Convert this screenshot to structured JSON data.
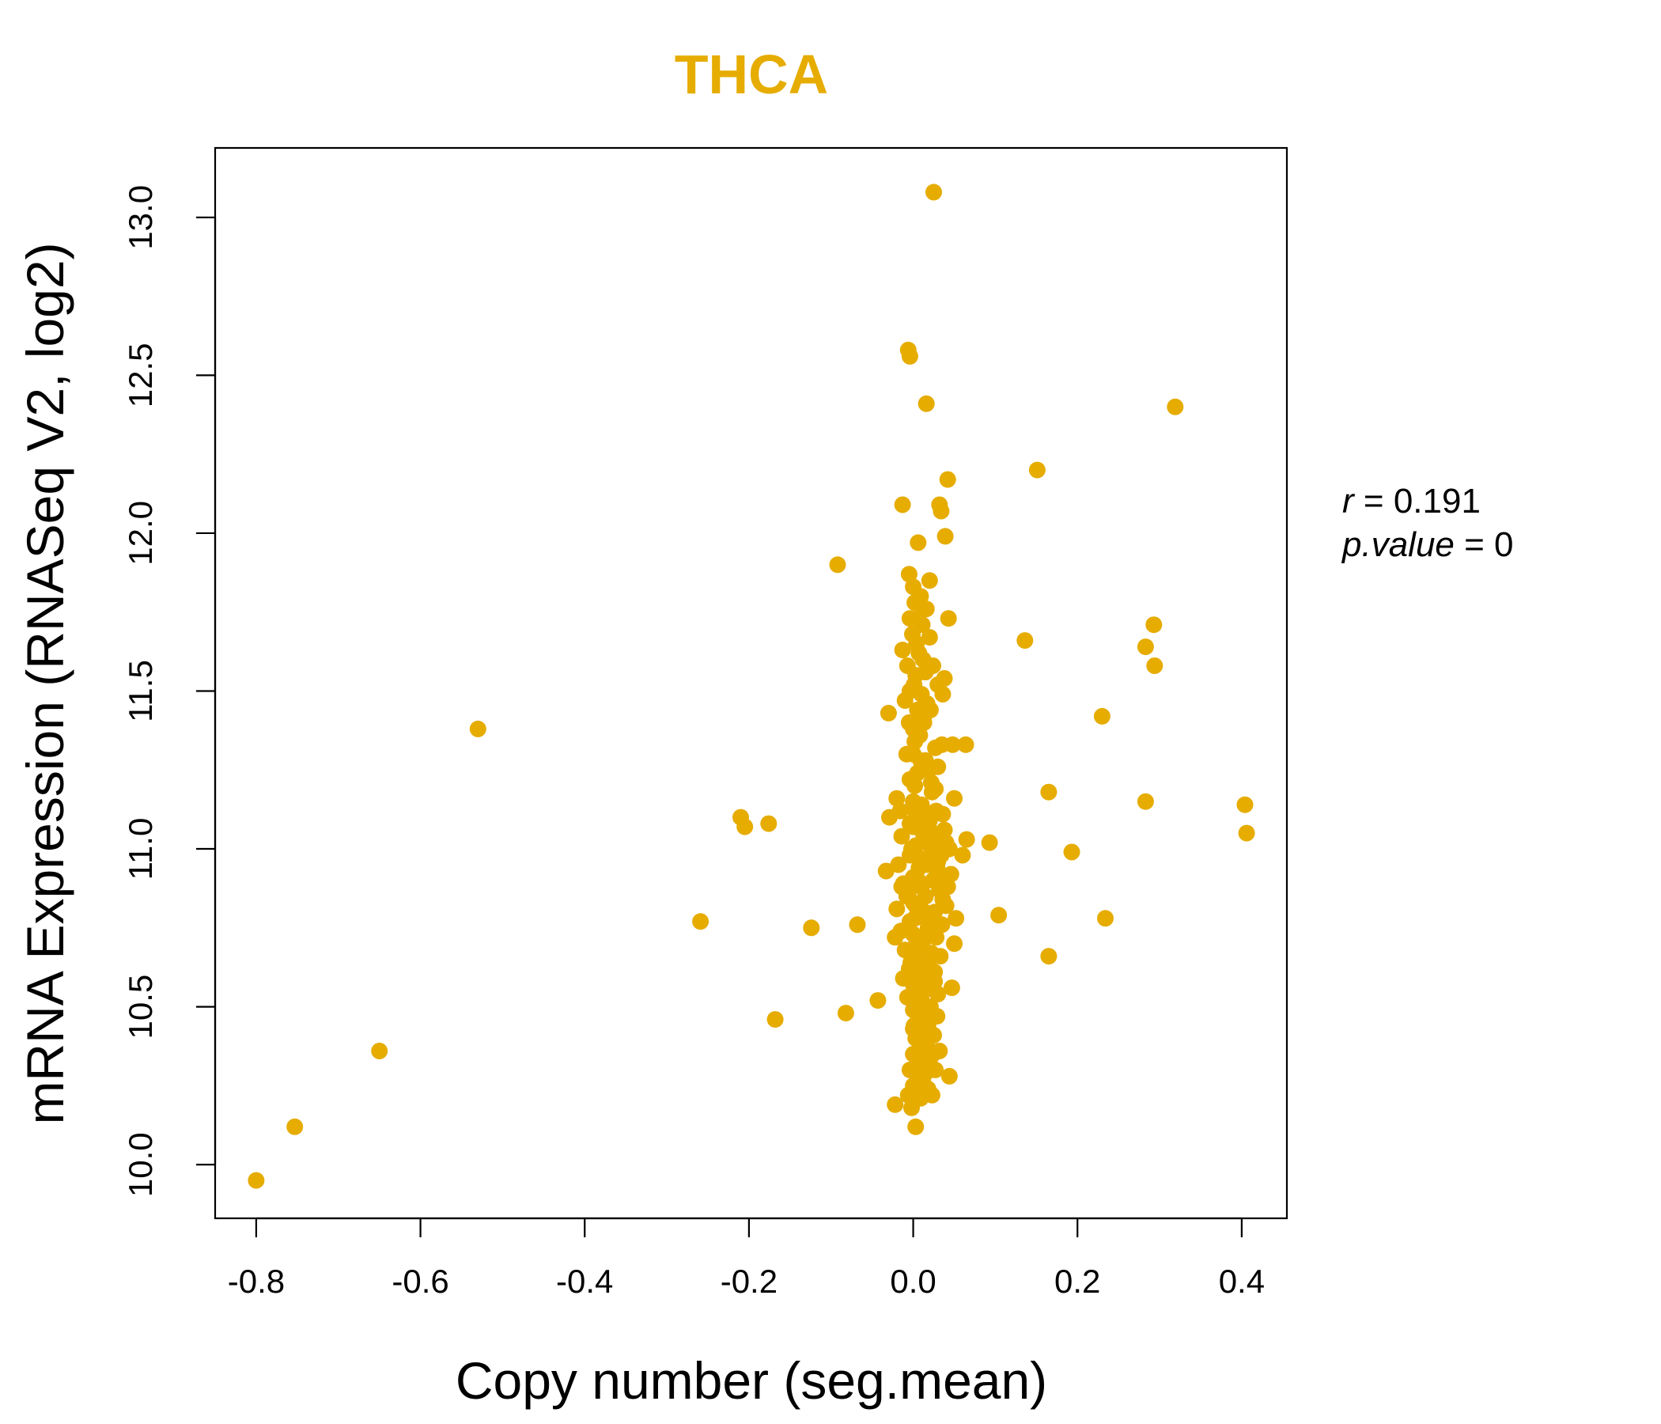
{
  "chart_data": {
    "type": "scatter",
    "title": "THCA",
    "xlabel": "Copy number (seg.mean)",
    "ylabel": "mRNA Expression (RNASeq V2, log2)",
    "xlim": [
      -0.85,
      0.455
    ],
    "ylim": [
      9.83,
      13.22
    ],
    "x_ticks": [
      -0.8,
      -0.6,
      -0.4,
      -0.2,
      0.0,
      0.2,
      0.4
    ],
    "x_tick_labels": [
      "-0.8",
      "-0.6",
      "-0.4",
      "-0.2",
      "0.0",
      "0.2",
      "0.4"
    ],
    "y_ticks": [
      10.0,
      10.5,
      11.0,
      11.5,
      12.0,
      12.5,
      13.0
    ],
    "y_tick_labels": [
      "10.0",
      "10.5",
      "11.0",
      "11.5",
      "12.0",
      "12.5",
      "13.0"
    ],
    "grid": false,
    "colors": {
      "points": "#E6AC00",
      "title": "#E6AC00",
      "axis": "#000000"
    },
    "annotation": {
      "r_label": "r",
      "r_value": "0.191",
      "p_label": "p.value",
      "p_value": "0"
    },
    "points": [
      [
        0.025,
        13.08
      ],
      [
        -0.006,
        12.58
      ],
      [
        -0.004,
        12.56
      ],
      [
        0.016,
        12.41
      ],
      [
        0.319,
        12.4
      ],
      [
        0.151,
        12.2
      ],
      [
        0.042,
        12.17
      ],
      [
        -0.013,
        12.09
      ],
      [
        0.032,
        12.09
      ],
      [
        0.034,
        12.07
      ],
      [
        0.039,
        11.99
      ],
      [
        0.006,
        11.97
      ],
      [
        -0.092,
        11.9
      ],
      [
        -0.005,
        11.87
      ],
      [
        0.02,
        11.85
      ],
      [
        0.0,
        11.83
      ],
      [
        0.002,
        11.78
      ],
      [
        0.016,
        11.76
      ],
      [
        0.293,
        11.71
      ],
      [
        -0.004,
        11.73
      ],
      [
        0.006,
        11.73
      ],
      [
        0.011,
        11.71
      ],
      [
        0.043,
        11.73
      ],
      [
        0.02,
        11.67
      ],
      [
        0.136,
        11.66
      ],
      [
        0.283,
        11.64
      ],
      [
        -0.013,
        11.63
      ],
      [
        0.012,
        11.6
      ],
      [
        -0.007,
        11.58
      ],
      [
        0.024,
        11.58
      ],
      [
        0.294,
        11.58
      ],
      [
        0.003,
        11.55
      ],
      [
        0.038,
        11.54
      ],
      [
        0.03,
        11.52
      ],
      [
        -0.004,
        11.5
      ],
      [
        0.01,
        11.49
      ],
      [
        0.036,
        11.49
      ],
      [
        0.017,
        11.46
      ],
      [
        -0.01,
        11.47
      ],
      [
        0.005,
        11.44
      ],
      [
        -0.03,
        11.43
      ],
      [
        0.23,
        11.42
      ],
      [
        -0.005,
        11.4
      ],
      [
        0.0,
        11.38
      ],
      [
        0.008,
        11.36
      ],
      [
        -0.53,
        11.38
      ],
      [
        0.002,
        11.34
      ],
      [
        0.035,
        11.33
      ],
      [
        0.048,
        11.33
      ],
      [
        0.064,
        11.33
      ],
      [
        0.0,
        11.3
      ],
      [
        -0.008,
        11.3
      ],
      [
        0.015,
        11.28
      ],
      [
        0.03,
        11.26
      ],
      [
        0.005,
        11.24
      ],
      [
        -0.004,
        11.22
      ],
      [
        0.022,
        11.21
      ],
      [
        0.027,
        11.19
      ],
      [
        0.165,
        11.18
      ],
      [
        -0.02,
        11.16
      ],
      [
        0.05,
        11.16
      ],
      [
        0.01,
        11.14
      ],
      [
        0.283,
        11.15
      ],
      [
        0.404,
        11.14
      ],
      [
        0.002,
        11.12
      ],
      [
        0.036,
        11.11
      ],
      [
        -0.21,
        11.1
      ],
      [
        -0.029,
        11.1
      ],
      [
        0.02,
        11.09
      ],
      [
        -0.205,
        11.07
      ],
      [
        -0.176,
        11.08
      ],
      [
        0.0,
        11.07
      ],
      [
        0.012,
        11.05
      ],
      [
        0.406,
        11.05
      ],
      [
        -0.014,
        11.04
      ],
      [
        0.065,
        11.03
      ],
      [
        0.04,
        11.02
      ],
      [
        0.093,
        11.02
      ],
      [
        0.003,
        11.01
      ],
      [
        0.023,
        11.0
      ],
      [
        0.193,
        10.99
      ],
      [
        0.06,
        10.98
      ],
      [
        -0.004,
        10.98
      ],
      [
        0.017,
        10.97
      ],
      [
        0.03,
        10.96
      ],
      [
        -0.018,
        10.95
      ],
      [
        0.007,
        10.94
      ],
      [
        -0.033,
        10.93
      ],
      [
        0.046,
        10.92
      ],
      [
        0.0,
        10.91
      ],
      [
        0.024,
        10.9
      ],
      [
        -0.012,
        10.89
      ],
      [
        0.01,
        10.88
      ],
      [
        0.032,
        10.87
      ],
      [
        -0.006,
        10.86
      ],
      [
        0.015,
        10.85
      ],
      [
        0.0,
        10.83
      ],
      [
        0.04,
        10.82
      ],
      [
        -0.02,
        10.81
      ],
      [
        0.026,
        10.8
      ],
      [
        0.104,
        10.79
      ],
      [
        0.01,
        10.79
      ],
      [
        0.052,
        10.78
      ],
      [
        0.234,
        10.78
      ],
      [
        -0.259,
        10.77
      ],
      [
        -0.004,
        10.77
      ],
      [
        0.035,
        10.76
      ],
      [
        -0.068,
        10.76
      ],
      [
        0.018,
        10.75
      ],
      [
        -0.124,
        10.75
      ],
      [
        -0.015,
        10.74
      ],
      [
        0.0,
        10.73
      ],
      [
        0.028,
        10.72
      ],
      [
        -0.022,
        10.72
      ],
      [
        0.012,
        10.71
      ],
      [
        0.05,
        10.7
      ],
      [
        0.004,
        10.69
      ],
      [
        -0.01,
        10.68
      ],
      [
        0.022,
        10.67
      ],
      [
        0.165,
        10.66
      ],
      [
        0.033,
        10.66
      ],
      [
        0.0,
        10.65
      ],
      [
        0.015,
        10.63
      ],
      [
        -0.005,
        10.62
      ],
      [
        0.026,
        10.61
      ],
      [
        0.008,
        10.6
      ],
      [
        -0.012,
        10.59
      ],
      [
        0.02,
        10.58
      ],
      [
        0.0,
        10.57
      ],
      [
        0.047,
        10.56
      ],
      [
        0.013,
        10.55
      ],
      [
        0.03,
        10.54
      ],
      [
        -0.007,
        10.53
      ],
      [
        0.01,
        10.52
      ],
      [
        -0.043,
        10.52
      ],
      [
        0.021,
        10.5
      ],
      [
        0.0,
        10.49
      ],
      [
        0.014,
        10.48
      ],
      [
        -0.082,
        10.48
      ],
      [
        0.029,
        10.47
      ],
      [
        0.006,
        10.46
      ],
      [
        -0.168,
        10.46
      ],
      [
        0.018,
        10.44
      ],
      [
        0.0,
        10.43
      ],
      [
        0.011,
        10.42
      ],
      [
        0.025,
        10.41
      ],
      [
        0.003,
        10.4
      ],
      [
        0.016,
        10.38
      ],
      [
        0.008,
        10.37
      ],
      [
        0.032,
        10.36
      ],
      [
        -0.65,
        10.36
      ],
      [
        0.0,
        10.35
      ],
      [
        0.02,
        10.33
      ],
      [
        0.01,
        10.32
      ],
      [
        -0.004,
        10.3
      ],
      [
        0.027,
        10.3
      ],
      [
        0.015,
        10.29
      ],
      [
        0.044,
        10.28
      ],
      [
        0.005,
        10.27
      ],
      [
        0.0,
        10.25
      ],
      [
        0.018,
        10.24
      ],
      [
        -0.006,
        10.22
      ],
      [
        0.009,
        10.21
      ],
      [
        -0.022,
        10.19
      ],
      [
        -0.002,
        10.18
      ],
      [
        -0.753,
        10.12
      ],
      [
        0.003,
        10.12
      ],
      [
        -0.8,
        9.95
      ],
      [
        0.002,
        11.2
      ],
      [
        0.012,
        11.1
      ],
      [
        -0.002,
        11.0
      ],
      [
        0.018,
        10.95
      ],
      [
        0.006,
        10.9
      ],
      [
        0.024,
        11.05
      ],
      [
        -0.008,
        10.85
      ],
      [
        0.014,
        10.8
      ],
      [
        0.004,
        10.7
      ],
      [
        0.02,
        10.6
      ],
      [
        0.0,
        11.15
      ],
      [
        0.028,
        11.12
      ],
      [
        -0.004,
        11.08
      ],
      [
        0.016,
        11.02
      ],
      [
        0.008,
        10.97
      ],
      [
        0.03,
        10.92
      ],
      [
        -0.014,
        10.88
      ],
      [
        0.036,
        10.84
      ],
      [
        0.002,
        10.78
      ],
      [
        0.022,
        10.74
      ],
      [
        0.011,
        10.68
      ],
      [
        -0.003,
        10.64
      ],
      [
        0.026,
        10.58
      ],
      [
        0.007,
        10.54
      ],
      [
        0.017,
        10.45
      ],
      [
        0.004,
        10.4
      ],
      [
        0.024,
        10.35
      ],
      [
        0.012,
        10.26
      ],
      [
        0.034,
        10.98
      ],
      [
        0.042,
        10.88
      ],
      [
        0.038,
        11.06
      ],
      [
        0.044,
        11.0
      ],
      [
        -0.016,
        11.12
      ],
      [
        0.019,
        11.25
      ],
      [
        0.009,
        11.28
      ],
      [
        0.027,
        11.32
      ],
      [
        0.013,
        11.4
      ],
      [
        0.021,
        11.44
      ],
      [
        0.001,
        11.52
      ],
      [
        0.015,
        11.56
      ],
      [
        0.007,
        11.62
      ],
      [
        -0.001,
        11.68
      ],
      [
        0.009,
        11.8
      ],
      [
        0.004,
        11.65
      ],
      [
        0.013,
        11.42
      ],
      [
        0.005,
        11.36
      ],
      [
        0.023,
        11.18
      ],
      [
        0.031,
        11.04
      ],
      [
        0.029,
        10.94
      ],
      [
        0.039,
        10.9
      ],
      [
        0.003,
        10.82
      ],
      [
        0.019,
        10.76
      ],
      [
        0.025,
        10.66
      ],
      [
        0.01,
        10.62
      ],
      [
        0.018,
        10.5
      ],
      [
        0.001,
        10.44
      ],
      [
        0.013,
        10.34
      ],
      [
        0.006,
        10.28
      ],
      [
        0.023,
        10.22
      ]
    ]
  }
}
